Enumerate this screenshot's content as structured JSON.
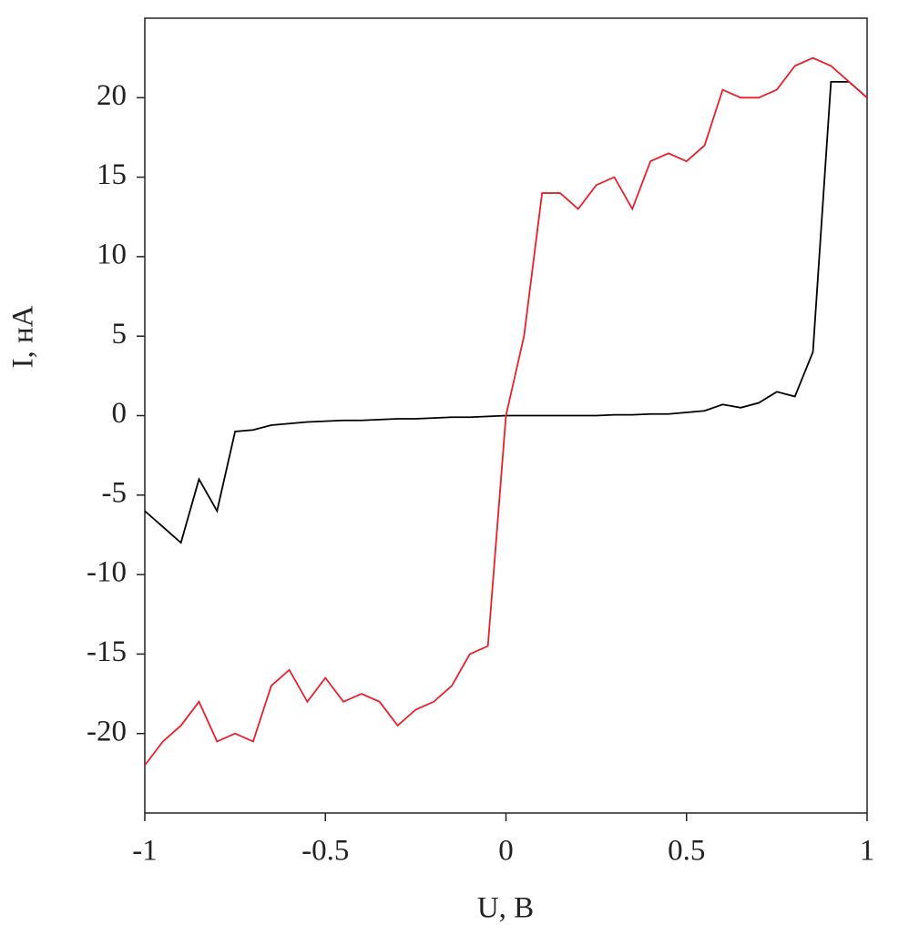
{
  "chart_data": {
    "type": "line",
    "xlabel": "U, В",
    "ylabel": "I, нА",
    "x": [
      -1,
      -0.95,
      -0.9,
      -0.85,
      -0.8,
      -0.75,
      -0.7,
      -0.65,
      -0.6,
      -0.55,
      -0.5,
      -0.45,
      -0.4,
      -0.35,
      -0.3,
      -0.25,
      -0.2,
      -0.15,
      -0.1,
      -0.05,
      0,
      0.05,
      0.1,
      0.15,
      0.2,
      0.25,
      0.3,
      0.35,
      0.4,
      0.45,
      0.5,
      0.55,
      0.6,
      0.65,
      0.7,
      0.75,
      0.8,
      0.85,
      0.9,
      0.95,
      1
    ],
    "series": [
      {
        "color": "#000000",
        "values": [
          -6,
          -7,
          -8,
          -4,
          -6,
          -1,
          -0.9,
          -0.6,
          -0.5,
          -0.4,
          -0.35,
          -0.3,
          -0.3,
          -0.25,
          -0.2,
          -0.2,
          -0.15,
          -0.1,
          -0.1,
          -0.05,
          0,
          0,
          0,
          0,
          0,
          0,
          0.05,
          0.05,
          0.1,
          0.1,
          0.2,
          0.3,
          0.7,
          0.5,
          0.8,
          1.5,
          1.2,
          4,
          21,
          21,
          20
        ]
      },
      {
        "color": "#e8202a",
        "values": [
          -22,
          -20.5,
          -19.5,
          -18,
          -20.5,
          -20,
          -20.5,
          -17,
          -16,
          -18,
          -16.5,
          -18,
          -17.5,
          -18,
          -19.5,
          -18.5,
          -18,
          -17,
          -15,
          -14.5,
          0,
          5,
          14,
          14,
          13,
          14.5,
          15,
          13,
          16,
          16.5,
          16,
          17,
          20.5,
          20,
          20,
          20.5,
          22,
          22.5,
          22,
          21,
          20
        ]
      }
    ],
    "xlim": [
      -1,
      1
    ],
    "xticks": [
      -1,
      -0.5,
      0,
      0.5,
      1
    ],
    "ylim": [
      -25,
      25
    ],
    "yticks": [
      -20,
      -15,
      -10,
      -5,
      0,
      5,
      10,
      15,
      20
    ]
  }
}
